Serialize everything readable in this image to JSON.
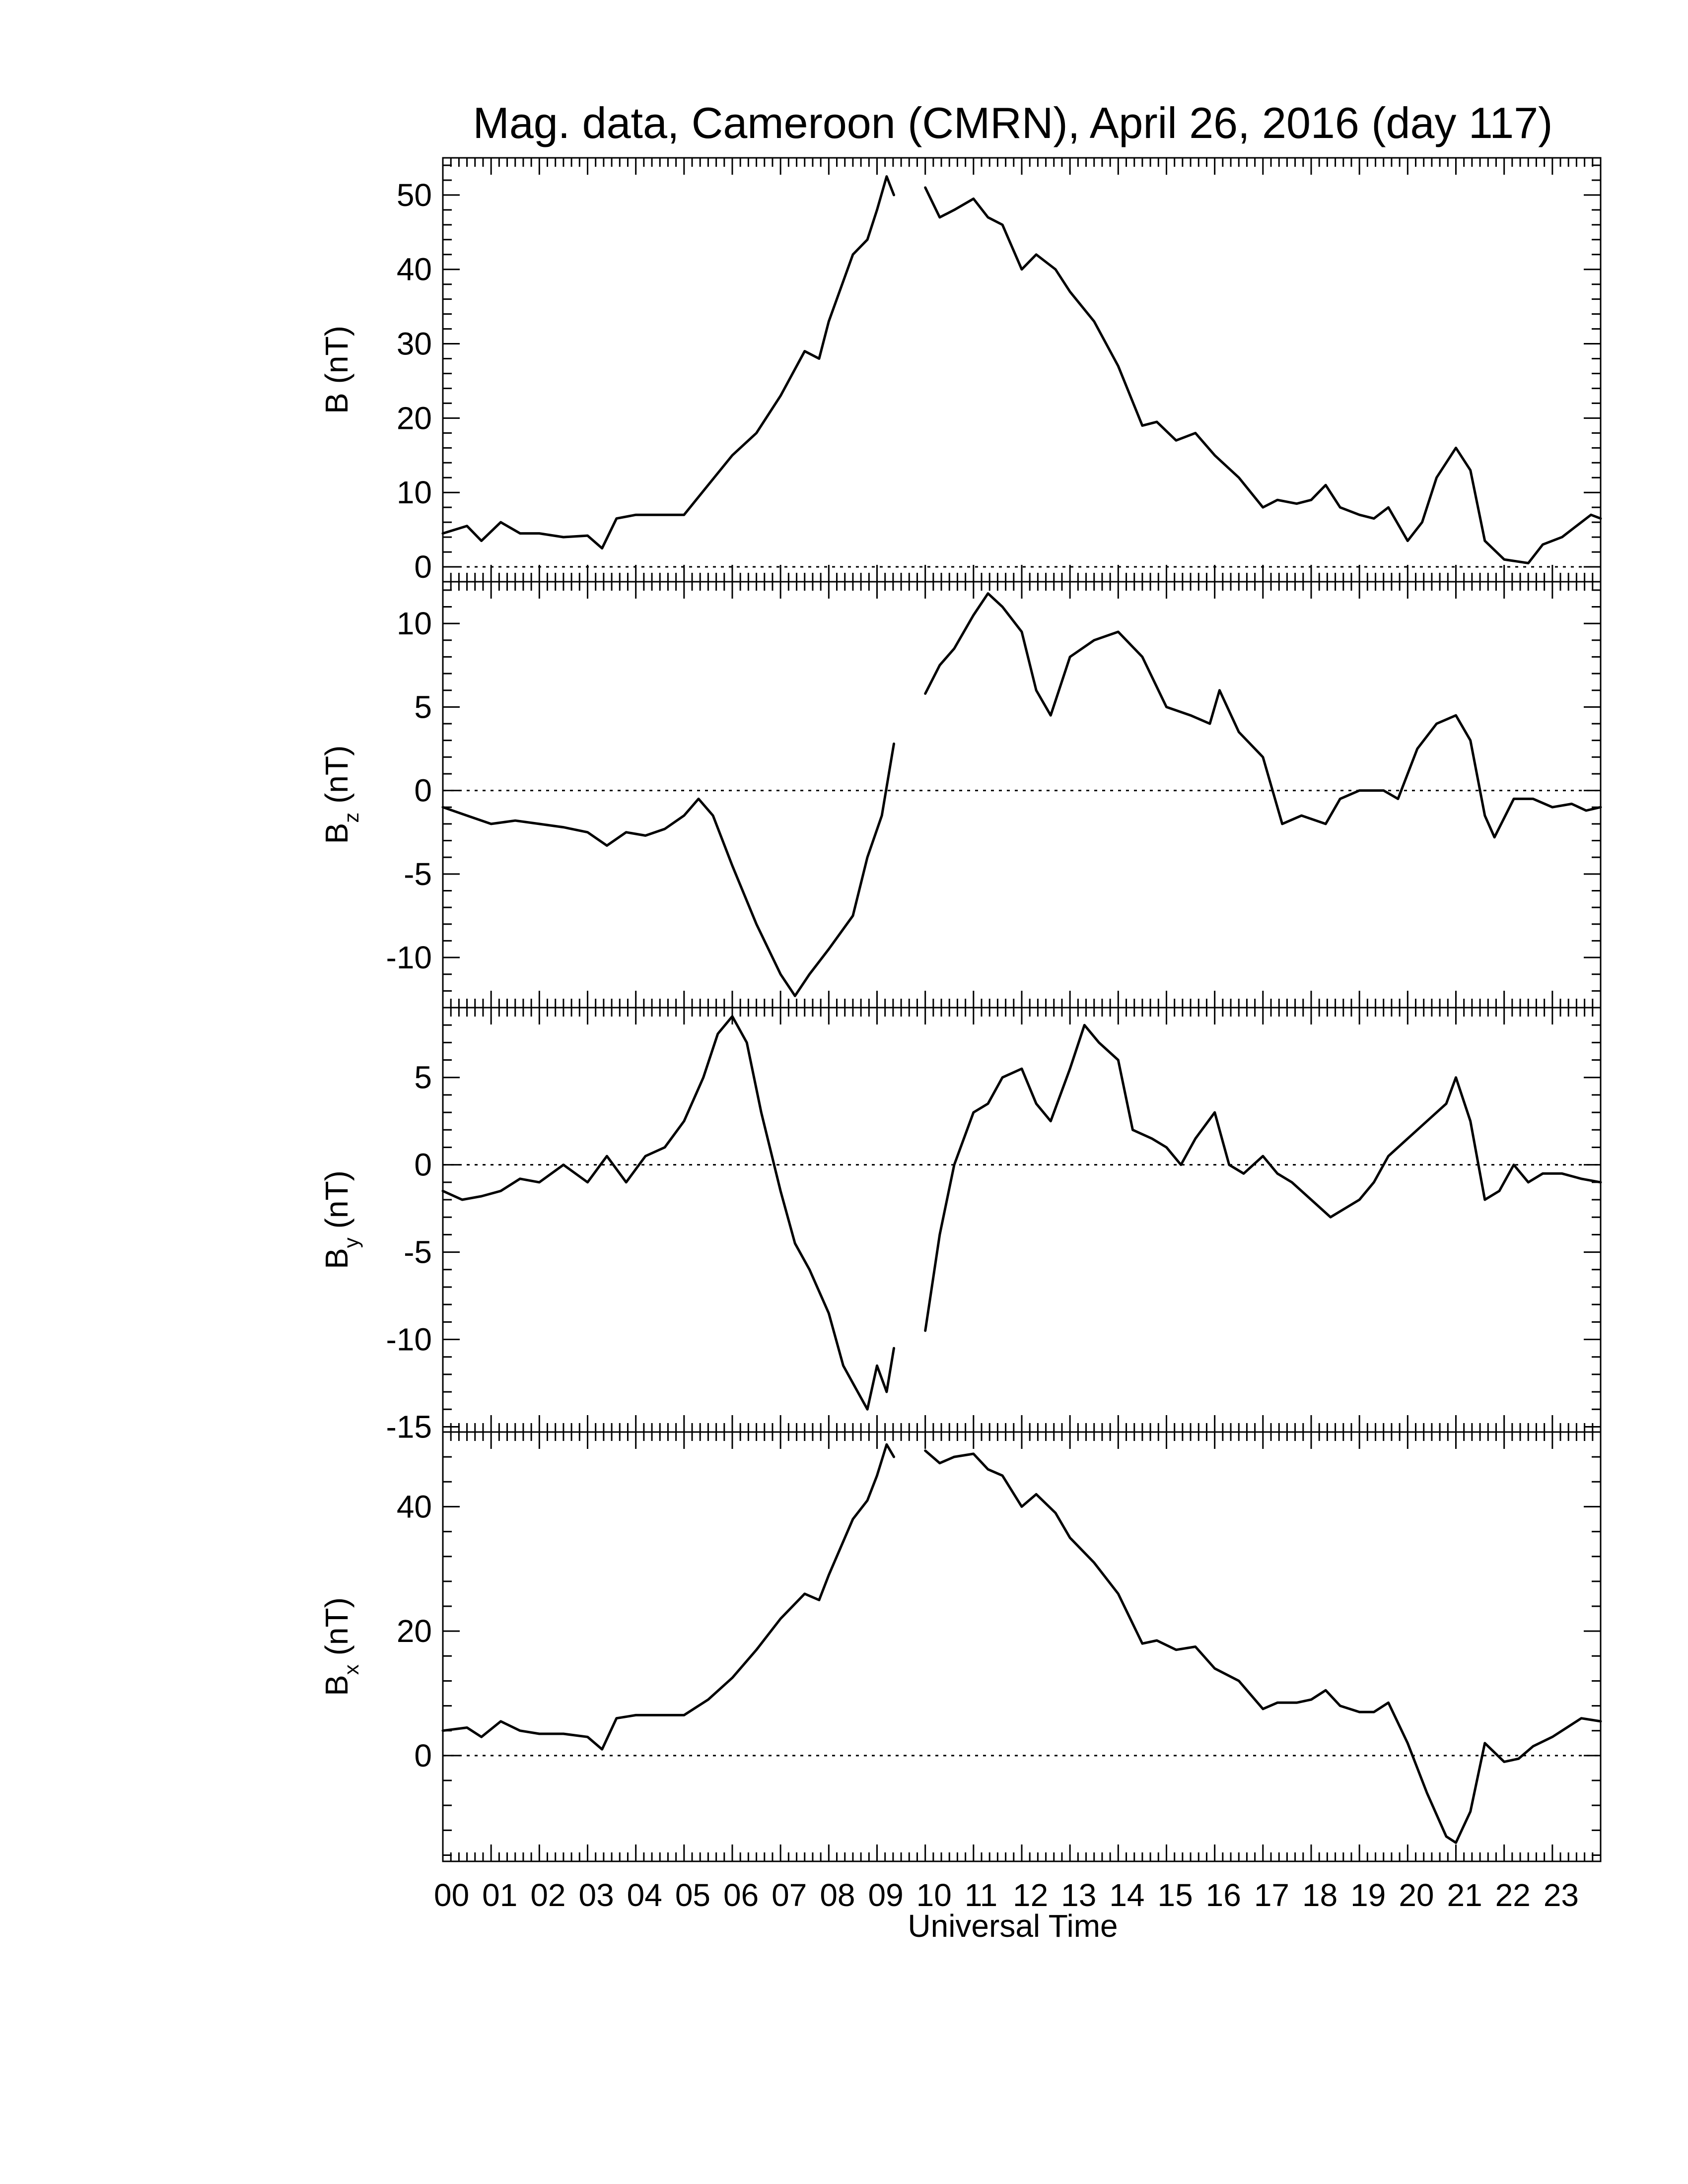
{
  "chart_data": {
    "type": "line",
    "title": "Mag. data, Cameroon (CMRN), April 26, 2016 (day 117)",
    "xlabel": "Universal Time",
    "xlim": [
      0,
      24
    ],
    "x_tick_labels": [
      "00",
      "01",
      "02",
      "03",
      "04",
      "05",
      "06",
      "07",
      "08",
      "09",
      "10",
      "11",
      "12",
      "13",
      "14",
      "15",
      "16",
      "17",
      "18",
      "19",
      "20",
      "21",
      "22",
      "23"
    ],
    "data_gap_hours": [
      9.35,
      9.95
    ],
    "panels": [
      {
        "ylabel_main": "B",
        "ylabel_sub": "",
        "ylabel_unit": "(nT)",
        "ylim": [
          -2,
          55
        ],
        "yticks": [
          0,
          10,
          20,
          30,
          40,
          50
        ],
        "tick_labels": [
          "0",
          "10",
          "20",
          "30",
          "40",
          "50"
        ],
        "zero_line": true,
        "points": [
          [
            0,
            4.5
          ],
          [
            0.5,
            5.5
          ],
          [
            0.8,
            3.5
          ],
          [
            1.2,
            6.0
          ],
          [
            1.6,
            4.5
          ],
          [
            2.0,
            4.5
          ],
          [
            2.5,
            4.0
          ],
          [
            3.0,
            4.2
          ],
          [
            3.3,
            2.5
          ],
          [
            3.6,
            6.5
          ],
          [
            4.0,
            7.0
          ],
          [
            4.5,
            7.0
          ],
          [
            5.0,
            7.0
          ],
          [
            5.5,
            11.0
          ],
          [
            6.0,
            15.0
          ],
          [
            6.5,
            18.0
          ],
          [
            7.0,
            23.0
          ],
          [
            7.5,
            29.0
          ],
          [
            7.8,
            28.0
          ],
          [
            8.0,
            33.0
          ],
          [
            8.5,
            42.0
          ],
          [
            8.8,
            44.0
          ],
          [
            9.0,
            48.0
          ],
          [
            9.2,
            52.5
          ],
          [
            9.35,
            50.0
          ],
          null,
          [
            10.0,
            51.0
          ],
          [
            10.3,
            47.0
          ],
          [
            10.6,
            48.0
          ],
          [
            11.0,
            49.5
          ],
          [
            11.3,
            47.0
          ],
          [
            11.6,
            46.0
          ],
          [
            12.0,
            40.0
          ],
          [
            12.3,
            42.0
          ],
          [
            12.7,
            40.0
          ],
          [
            13.0,
            37.0
          ],
          [
            13.5,
            33.0
          ],
          [
            14.0,
            27.0
          ],
          [
            14.5,
            19.0
          ],
          [
            14.8,
            19.5
          ],
          [
            15.2,
            17.0
          ],
          [
            15.6,
            18.0
          ],
          [
            16.0,
            15.0
          ],
          [
            16.5,
            12.0
          ],
          [
            17.0,
            8.0
          ],
          [
            17.3,
            9.0
          ],
          [
            17.7,
            8.5
          ],
          [
            18.0,
            9.0
          ],
          [
            18.3,
            11.0
          ],
          [
            18.6,
            8.0
          ],
          [
            19.0,
            7.0
          ],
          [
            19.3,
            6.5
          ],
          [
            19.6,
            8.0
          ],
          [
            20.0,
            3.5
          ],
          [
            20.3,
            6.0
          ],
          [
            20.6,
            12.0
          ],
          [
            21.0,
            16.0
          ],
          [
            21.3,
            13.0
          ],
          [
            21.6,
            3.5
          ],
          [
            22.0,
            1.0
          ],
          [
            22.5,
            0.5
          ],
          [
            22.8,
            3.0
          ],
          [
            23.2,
            4.0
          ],
          [
            23.5,
            5.5
          ],
          [
            23.8,
            7.0
          ],
          [
            24.0,
            6.5
          ]
        ]
      },
      {
        "ylabel_main": "B",
        "ylabel_sub": "z",
        "ylabel_unit": "(nT)",
        "ylim": [
          -13,
          12.5
        ],
        "yticks": [
          -10,
          -5,
          0,
          5,
          10
        ],
        "tick_labels": [
          "-10",
          "-5",
          "0",
          "5",
          "10"
        ],
        "zero_line": true,
        "points": [
          [
            0,
            -1.0
          ],
          [
            0.5,
            -1.5
          ],
          [
            1.0,
            -2.0
          ],
          [
            1.5,
            -1.8
          ],
          [
            2.0,
            -2.0
          ],
          [
            2.5,
            -2.2
          ],
          [
            3.0,
            -2.5
          ],
          [
            3.4,
            -3.3
          ],
          [
            3.8,
            -2.5
          ],
          [
            4.2,
            -2.7
          ],
          [
            4.6,
            -2.3
          ],
          [
            5.0,
            -1.5
          ],
          [
            5.3,
            -0.5
          ],
          [
            5.6,
            -1.5
          ],
          [
            6.0,
            -4.5
          ],
          [
            6.5,
            -8.0
          ],
          [
            7.0,
            -11.0
          ],
          [
            7.3,
            -12.3
          ],
          [
            7.6,
            -11.0
          ],
          [
            8.0,
            -9.5
          ],
          [
            8.5,
            -7.5
          ],
          [
            8.8,
            -4.0
          ],
          [
            9.1,
            -1.5
          ],
          [
            9.35,
            2.8
          ],
          null,
          [
            10.0,
            5.8
          ],
          [
            10.3,
            7.5
          ],
          [
            10.6,
            8.5
          ],
          [
            11.0,
            10.5
          ],
          [
            11.3,
            11.8
          ],
          [
            11.6,
            11.0
          ],
          [
            12.0,
            9.5
          ],
          [
            12.3,
            6.0
          ],
          [
            12.6,
            4.5
          ],
          [
            13.0,
            8.0
          ],
          [
            13.5,
            9.0
          ],
          [
            14.0,
            9.5
          ],
          [
            14.5,
            8.0
          ],
          [
            15.0,
            5.0
          ],
          [
            15.5,
            4.5
          ],
          [
            15.9,
            4.0
          ],
          [
            16.1,
            6.0
          ],
          [
            16.5,
            3.5
          ],
          [
            17.0,
            2.0
          ],
          [
            17.4,
            -2.0
          ],
          [
            17.8,
            -1.5
          ],
          [
            18.3,
            -2.0
          ],
          [
            18.6,
            -0.5
          ],
          [
            19.0,
            0.0
          ],
          [
            19.5,
            0.0
          ],
          [
            19.8,
            -0.5
          ],
          [
            20.2,
            2.5
          ],
          [
            20.6,
            4.0
          ],
          [
            21.0,
            4.5
          ],
          [
            21.3,
            3.0
          ],
          [
            21.6,
            -1.5
          ],
          [
            21.8,
            -2.8
          ],
          [
            22.2,
            -0.5
          ],
          [
            22.6,
            -0.5
          ],
          [
            23.0,
            -1.0
          ],
          [
            23.4,
            -0.8
          ],
          [
            23.7,
            -1.2
          ],
          [
            24.0,
            -1.0
          ]
        ]
      },
      {
        "ylabel_main": "B",
        "ylabel_sub": "y",
        "ylabel_unit": "(nT)",
        "ylim": [
          -15.3,
          9.0
        ],
        "yticks": [
          -15,
          -10,
          -5,
          0,
          5
        ],
        "tick_labels": [
          "-15",
          "-10",
          "-5",
          "0",
          "5"
        ],
        "zero_line": true,
        "points": [
          [
            0,
            -1.5
          ],
          [
            0.4,
            -2.0
          ],
          [
            0.8,
            -1.8
          ],
          [
            1.2,
            -1.5
          ],
          [
            1.6,
            -0.8
          ],
          [
            2.0,
            -1.0
          ],
          [
            2.5,
            0.0
          ],
          [
            3.0,
            -1.0
          ],
          [
            3.4,
            0.5
          ],
          [
            3.8,
            -1.0
          ],
          [
            4.2,
            0.5
          ],
          [
            4.6,
            1.0
          ],
          [
            5.0,
            2.5
          ],
          [
            5.4,
            5.0
          ],
          [
            5.7,
            7.5
          ],
          [
            6.0,
            8.5
          ],
          [
            6.3,
            7.0
          ],
          [
            6.6,
            3.0
          ],
          [
            7.0,
            -1.5
          ],
          [
            7.3,
            -4.5
          ],
          [
            7.6,
            -6.0
          ],
          [
            8.0,
            -8.5
          ],
          [
            8.3,
            -11.5
          ],
          [
            8.6,
            -13.0
          ],
          [
            8.8,
            -14.0
          ],
          [
            9.0,
            -11.5
          ],
          [
            9.2,
            -13.0
          ],
          [
            9.35,
            -10.5
          ],
          null,
          [
            10.0,
            -9.5
          ],
          [
            10.3,
            -4.0
          ],
          [
            10.6,
            0.0
          ],
          [
            11.0,
            3.0
          ],
          [
            11.3,
            3.5
          ],
          [
            11.6,
            5.0
          ],
          [
            12.0,
            5.5
          ],
          [
            12.3,
            3.5
          ],
          [
            12.6,
            2.5
          ],
          [
            13.0,
            5.5
          ],
          [
            13.3,
            8.0
          ],
          [
            13.6,
            7.0
          ],
          [
            14.0,
            6.0
          ],
          [
            14.3,
            2.0
          ],
          [
            14.7,
            1.5
          ],
          [
            15.0,
            1.0
          ],
          [
            15.3,
            0.0
          ],
          [
            15.6,
            1.5
          ],
          [
            16.0,
            3.0
          ],
          [
            16.3,
            0.0
          ],
          [
            16.6,
            -0.5
          ],
          [
            17.0,
            0.5
          ],
          [
            17.3,
            -0.5
          ],
          [
            17.6,
            -1.0
          ],
          [
            18.0,
            -2.0
          ],
          [
            18.4,
            -3.0
          ],
          [
            18.7,
            -2.5
          ],
          [
            19.0,
            -2.0
          ],
          [
            19.3,
            -1.0
          ],
          [
            19.6,
            0.5
          ],
          [
            20.0,
            1.5
          ],
          [
            20.4,
            2.5
          ],
          [
            20.8,
            3.5
          ],
          [
            21.0,
            5.0
          ],
          [
            21.3,
            2.5
          ],
          [
            21.6,
            -2.0
          ],
          [
            21.9,
            -1.5
          ],
          [
            22.2,
            0.0
          ],
          [
            22.5,
            -1.0
          ],
          [
            22.8,
            -0.5
          ],
          [
            23.2,
            -0.5
          ],
          [
            23.6,
            -0.8
          ],
          [
            24.0,
            -1.0
          ]
        ]
      },
      {
        "ylabel_main": "B",
        "ylabel_sub": "x",
        "ylabel_unit": "(nT)",
        "ylim": [
          -17,
          52
        ],
        "yticks": [
          0,
          20,
          40
        ],
        "tick_labels": [
          "0",
          "20",
          "40"
        ],
        "zero_line": true,
        "points": [
          [
            0,
            4.0
          ],
          [
            0.5,
            4.5
          ],
          [
            0.8,
            3.0
          ],
          [
            1.2,
            5.5
          ],
          [
            1.6,
            4.0
          ],
          [
            2.0,
            3.5
          ],
          [
            2.5,
            3.5
          ],
          [
            3.0,
            3.0
          ],
          [
            3.3,
            1.0
          ],
          [
            3.6,
            6.0
          ],
          [
            4.0,
            6.5
          ],
          [
            4.5,
            6.5
          ],
          [
            5.0,
            6.5
          ],
          [
            5.5,
            9.0
          ],
          [
            6.0,
            12.5
          ],
          [
            6.5,
            17.0
          ],
          [
            7.0,
            22.0
          ],
          [
            7.5,
            26.0
          ],
          [
            7.8,
            25.0
          ],
          [
            8.0,
            29.0
          ],
          [
            8.5,
            38.0
          ],
          [
            8.8,
            41.0
          ],
          [
            9.0,
            45.0
          ],
          [
            9.2,
            50.0
          ],
          [
            9.35,
            48.0
          ],
          null,
          [
            10.0,
            49.0
          ],
          [
            10.3,
            47.0
          ],
          [
            10.6,
            48.0
          ],
          [
            11.0,
            48.5
          ],
          [
            11.3,
            46.0
          ],
          [
            11.6,
            45.0
          ],
          [
            12.0,
            40.0
          ],
          [
            12.3,
            42.0
          ],
          [
            12.7,
            39.0
          ],
          [
            13.0,
            35.0
          ],
          [
            13.5,
            31.0
          ],
          [
            14.0,
            26.0
          ],
          [
            14.5,
            18.0
          ],
          [
            14.8,
            18.5
          ],
          [
            15.2,
            17.0
          ],
          [
            15.6,
            17.5
          ],
          [
            16.0,
            14.0
          ],
          [
            16.5,
            12.0
          ],
          [
            17.0,
            7.5
          ],
          [
            17.3,
            8.5
          ],
          [
            17.7,
            8.5
          ],
          [
            18.0,
            9.0
          ],
          [
            18.3,
            10.5
          ],
          [
            18.6,
            8.0
          ],
          [
            19.0,
            7.0
          ],
          [
            19.3,
            7.0
          ],
          [
            19.6,
            8.5
          ],
          [
            20.0,
            2.0
          ],
          [
            20.4,
            -6.0
          ],
          [
            20.8,
            -13.0
          ],
          [
            21.0,
            -14.0
          ],
          [
            21.3,
            -9.0
          ],
          [
            21.6,
            2.0
          ],
          [
            22.0,
            -1.0
          ],
          [
            22.3,
            -0.5
          ],
          [
            22.6,
            1.5
          ],
          [
            23.0,
            3.0
          ],
          [
            23.3,
            4.5
          ],
          [
            23.6,
            6.0
          ],
          [
            24.0,
            5.5
          ]
        ]
      }
    ]
  }
}
